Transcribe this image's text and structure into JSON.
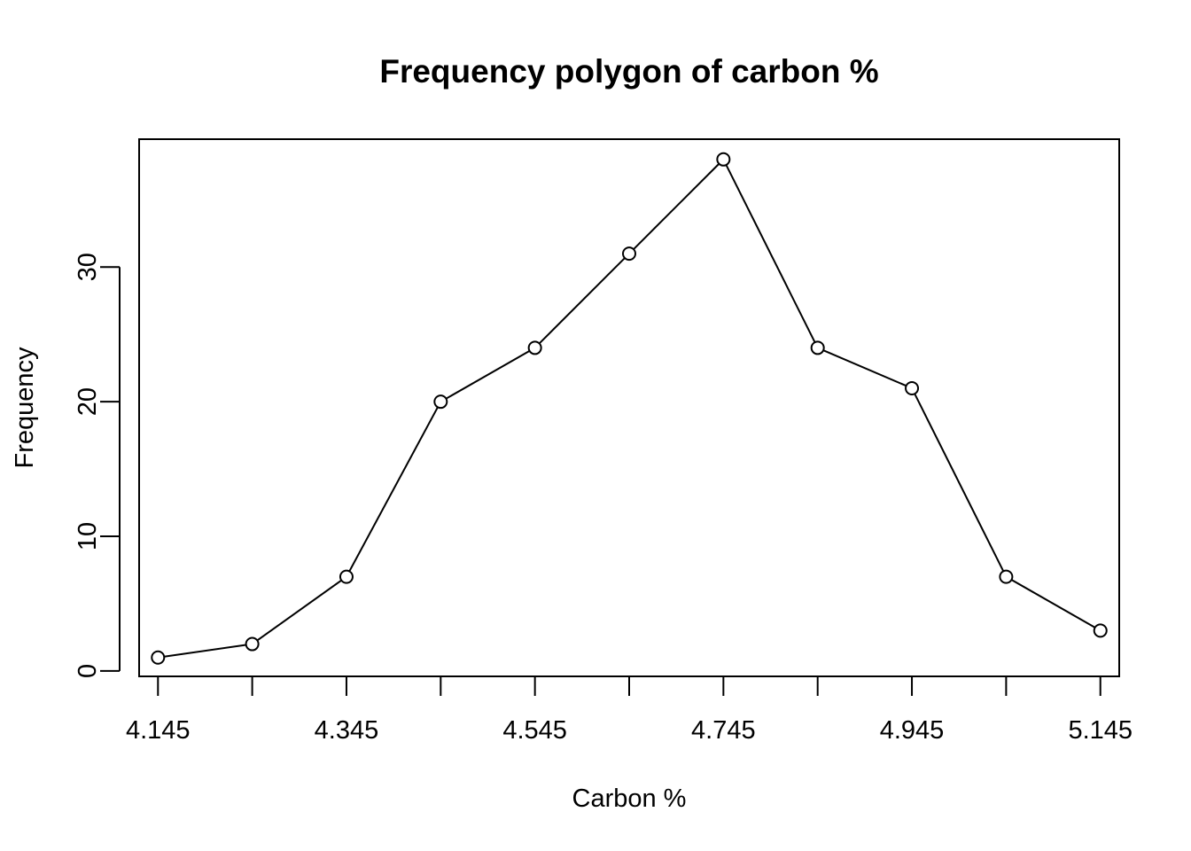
{
  "chart_data": {
    "type": "line",
    "title": "Frequency polygon of carbon %",
    "xlabel": "Carbon %",
    "ylabel": "Frequency",
    "x": [
      4.145,
      4.245,
      4.345,
      4.445,
      4.545,
      4.645,
      4.745,
      4.845,
      4.945,
      5.045,
      5.145
    ],
    "values": [
      1,
      2,
      7,
      20,
      24,
      31,
      38,
      24,
      21,
      7,
      3
    ],
    "xlim": [
      4.125,
      5.165
    ],
    "ylim": [
      -0.4,
      39.5
    ],
    "x_ticks": [
      4.145,
      4.245,
      4.345,
      4.445,
      4.545,
      4.645,
      4.745,
      4.845,
      4.945,
      5.045,
      5.145
    ],
    "x_tick_labels": [
      "4.145",
      "",
      "4.345",
      "",
      "4.545",
      "",
      "4.745",
      "",
      "4.945",
      "",
      "5.145"
    ],
    "y_ticks": [
      0,
      10,
      20,
      30
    ],
    "y_tick_labels": [
      "0",
      "10",
      "20",
      "30"
    ],
    "markers": "open-circle",
    "line_color": "#000000",
    "grid": false,
    "legend": "none"
  }
}
